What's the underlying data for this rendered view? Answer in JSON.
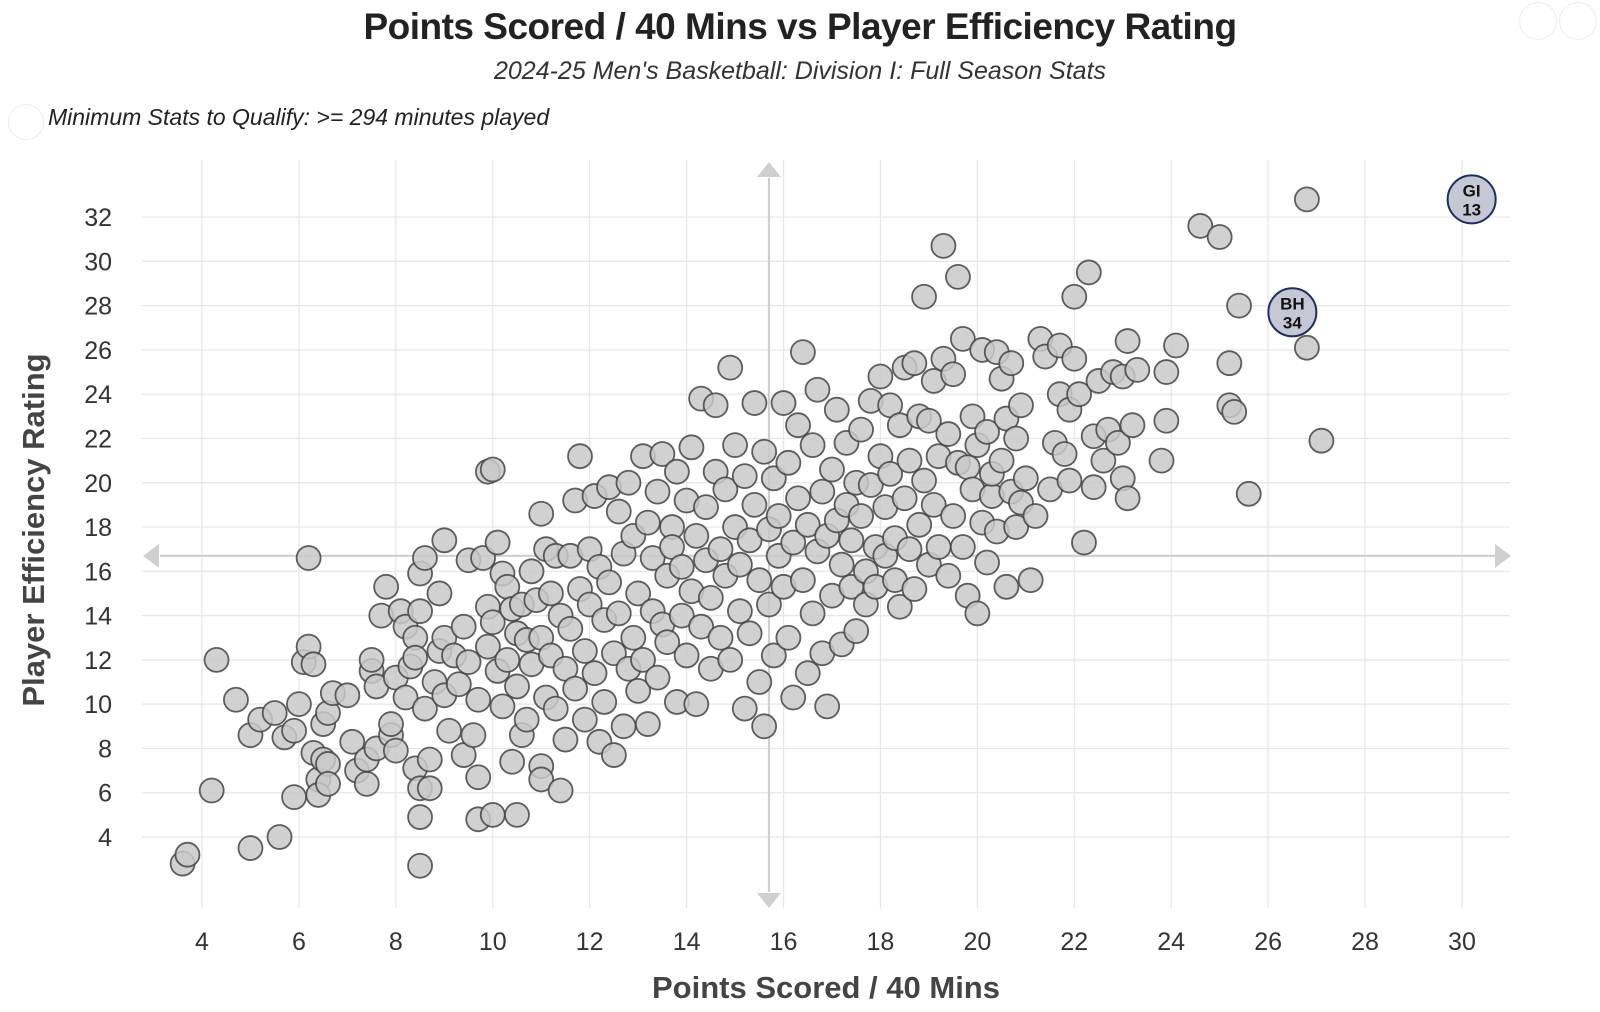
{
  "header": {
    "title": "Points Scored / 40 Mins vs Player Efficiency Rating",
    "subtitle": "2024-25 Men's Basketball: Division I: Full Season Stats",
    "qualify_note": "Minimum Stats to Qualify: >= 294 minutes played"
  },
  "colors": {
    "point_fill": "#c9c9c9",
    "point_stroke": "#444444",
    "highlight_fill": "#c5c7d4",
    "highlight_stroke": "#1f2d5c",
    "grid": "#e6e6e6",
    "mean_line": "#cfcfcf"
  },
  "chart_data": {
    "type": "scatter",
    "title": "Points Scored / 40 Mins vs Player Efficiency Rating",
    "subtitle": "2024-25 Men's Basketball: Division I: Full Season Stats",
    "xlabel": "Points Scored / 40 Mins",
    "ylabel": "Player Efficiency Rating",
    "xlim": [
      3,
      31.5
    ],
    "ylim": [
      1.8,
      34.7
    ],
    "x_ticks": [
      "4",
      "6",
      "8",
      "10",
      "12",
      "14",
      "16",
      "18",
      "20",
      "22",
      "24",
      "26",
      "28",
      "30"
    ],
    "y_ticks": [
      "4",
      "6",
      "8",
      "10",
      "12",
      "14",
      "16",
      "18",
      "20",
      "22",
      "24",
      "26",
      "28",
      "30",
      "32"
    ],
    "grid": true,
    "mean_lines": {
      "x": 15.7,
      "y": 16.7
    },
    "highlighted": [
      {
        "label_top": "GI",
        "label_bottom": "13",
        "x": 30.2,
        "y": 32.8
      },
      {
        "label_top": "BH",
        "label_bottom": "34",
        "x": 26.5,
        "y": 27.7
      }
    ],
    "points": [
      [
        3.6,
        2.8
      ],
      [
        3.7,
        3.2
      ],
      [
        4.2,
        6.1
      ],
      [
        4.3,
        12.0
      ],
      [
        4.7,
        10.2
      ],
      [
        5.0,
        3.5
      ],
      [
        5.0,
        8.6
      ],
      [
        5.2,
        9.3
      ],
      [
        5.5,
        9.6
      ],
      [
        5.6,
        4.0
      ],
      [
        5.7,
        8.5
      ],
      [
        5.9,
        5.8
      ],
      [
        5.9,
        8.8
      ],
      [
        6.0,
        10.0
      ],
      [
        6.1,
        11.9
      ],
      [
        6.2,
        16.6
      ],
      [
        6.2,
        12.6
      ],
      [
        6.3,
        11.8
      ],
      [
        6.3,
        7.8
      ],
      [
        6.4,
        6.6
      ],
      [
        6.4,
        5.9
      ],
      [
        6.5,
        7.5
      ],
      [
        6.5,
        9.1
      ],
      [
        6.6,
        9.6
      ],
      [
        6.6,
        7.3
      ],
      [
        6.7,
        10.5
      ],
      [
        6.6,
        6.4
      ],
      [
        7.0,
        10.4
      ],
      [
        7.1,
        8.3
      ],
      [
        7.2,
        7.0
      ],
      [
        7.4,
        6.4
      ],
      [
        7.4,
        7.5
      ],
      [
        7.5,
        11.5
      ],
      [
        7.5,
        12.0
      ],
      [
        7.6,
        8.0
      ],
      [
        7.6,
        10.8
      ],
      [
        7.7,
        14.0
      ],
      [
        7.8,
        15.3
      ],
      [
        7.9,
        8.6
      ],
      [
        7.9,
        9.1
      ],
      [
        8.0,
        11.2
      ],
      [
        8.0,
        7.9
      ],
      [
        8.1,
        14.2
      ],
      [
        8.2,
        13.5
      ],
      [
        8.2,
        10.3
      ],
      [
        8.3,
        11.7
      ],
      [
        8.4,
        13.0
      ],
      [
        8.4,
        12.1
      ],
      [
        8.4,
        7.1
      ],
      [
        8.5,
        6.2
      ],
      [
        8.5,
        4.9
      ],
      [
        8.5,
        2.7
      ],
      [
        8.5,
        14.2
      ],
      [
        8.5,
        15.9
      ],
      [
        8.6,
        16.6
      ],
      [
        8.6,
        9.8
      ],
      [
        8.7,
        7.5
      ],
      [
        8.7,
        6.2
      ],
      [
        8.8,
        11.0
      ],
      [
        8.9,
        12.4
      ],
      [
        8.9,
        15.0
      ],
      [
        9.0,
        17.4
      ],
      [
        9.0,
        10.4
      ],
      [
        9.0,
        13.0
      ],
      [
        9.1,
        8.8
      ],
      [
        9.2,
        12.2
      ],
      [
        9.3,
        10.9
      ],
      [
        9.4,
        7.7
      ],
      [
        9.4,
        13.5
      ],
      [
        9.5,
        16.5
      ],
      [
        9.5,
        11.9
      ],
      [
        9.6,
        8.6
      ],
      [
        9.7,
        4.8
      ],
      [
        9.7,
        10.2
      ],
      [
        9.7,
        6.7
      ],
      [
        9.8,
        16.6
      ],
      [
        9.9,
        14.4
      ],
      [
        9.9,
        12.6
      ],
      [
        9.9,
        20.5
      ],
      [
        10.0,
        20.6
      ],
      [
        10.0,
        13.7
      ],
      [
        10.0,
        5.0
      ],
      [
        10.1,
        17.3
      ],
      [
        10.1,
        11.5
      ],
      [
        10.2,
        15.9
      ],
      [
        10.2,
        9.9
      ],
      [
        10.3,
        15.3
      ],
      [
        10.3,
        12.0
      ],
      [
        10.4,
        7.4
      ],
      [
        10.4,
        14.3
      ],
      [
        10.5,
        13.2
      ],
      [
        10.5,
        10.8
      ],
      [
        10.5,
        5.0
      ],
      [
        10.6,
        8.6
      ],
      [
        10.6,
        14.5
      ],
      [
        10.7,
        12.9
      ],
      [
        10.7,
        9.3
      ],
      [
        10.8,
        16.0
      ],
      [
        10.8,
        11.8
      ],
      [
        10.9,
        14.7
      ],
      [
        11.0,
        18.6
      ],
      [
        11.0,
        13.0
      ],
      [
        11.0,
        7.2
      ],
      [
        11.0,
        6.6
      ],
      [
        11.1,
        17.0
      ],
      [
        11.1,
        10.3
      ],
      [
        11.2,
        15.0
      ],
      [
        11.2,
        12.2
      ],
      [
        11.3,
        9.8
      ],
      [
        11.3,
        16.7
      ],
      [
        11.4,
        6.1
      ],
      [
        11.4,
        14.0
      ],
      [
        11.5,
        11.6
      ],
      [
        11.5,
        8.4
      ],
      [
        11.6,
        16.7
      ],
      [
        11.6,
        13.4
      ],
      [
        11.7,
        19.2
      ],
      [
        11.7,
        10.7
      ],
      [
        11.8,
        21.2
      ],
      [
        11.8,
        15.2
      ],
      [
        11.9,
        12.4
      ],
      [
        11.9,
        9.3
      ],
      [
        12.0,
        17.0
      ],
      [
        12.0,
        14.5
      ],
      [
        12.1,
        19.4
      ],
      [
        12.1,
        11.4
      ],
      [
        12.2,
        8.3
      ],
      [
        12.2,
        16.2
      ],
      [
        12.3,
        13.8
      ],
      [
        12.3,
        10.1
      ],
      [
        12.4,
        15.5
      ],
      [
        12.4,
        19.8
      ],
      [
        12.5,
        12.3
      ],
      [
        12.5,
        7.7
      ],
      [
        12.6,
        18.7
      ],
      [
        12.6,
        14.1
      ],
      [
        12.7,
        16.8
      ],
      [
        12.7,
        9.0
      ],
      [
        12.8,
        11.6
      ],
      [
        12.8,
        20.0
      ],
      [
        12.9,
        13.0
      ],
      [
        12.9,
        17.6
      ],
      [
        13.0,
        15.0
      ],
      [
        13.0,
        10.6
      ],
      [
        13.1,
        21.2
      ],
      [
        13.1,
        12.0
      ],
      [
        13.2,
        18.2
      ],
      [
        13.2,
        9.1
      ],
      [
        13.3,
        14.2
      ],
      [
        13.3,
        16.6
      ],
      [
        13.4,
        19.6
      ],
      [
        13.4,
        11.2
      ],
      [
        13.5,
        13.6
      ],
      [
        13.5,
        21.3
      ],
      [
        13.6,
        15.8
      ],
      [
        13.6,
        12.8
      ],
      [
        13.7,
        18.0
      ],
      [
        13.7,
        17.1
      ],
      [
        13.8,
        10.1
      ],
      [
        13.8,
        20.5
      ],
      [
        13.9,
        14.0
      ],
      [
        13.9,
        16.2
      ],
      [
        14.0,
        19.2
      ],
      [
        14.0,
        12.2
      ],
      [
        14.1,
        21.6
      ],
      [
        14.1,
        15.1
      ],
      [
        14.2,
        17.6
      ],
      [
        14.2,
        10.0
      ],
      [
        14.3,
        23.8
      ],
      [
        14.3,
        13.5
      ],
      [
        14.4,
        16.5
      ],
      [
        14.4,
        18.9
      ],
      [
        14.5,
        14.8
      ],
      [
        14.5,
        11.6
      ],
      [
        14.6,
        20.5
      ],
      [
        14.6,
        23.5
      ],
      [
        14.7,
        17.0
      ],
      [
        14.7,
        13.0
      ],
      [
        14.8,
        19.7
      ],
      [
        14.8,
        15.8
      ],
      [
        14.9,
        25.2
      ],
      [
        14.9,
        12.0
      ],
      [
        15.0,
        21.7
      ],
      [
        15.0,
        18.0
      ],
      [
        15.1,
        16.3
      ],
      [
        15.1,
        14.2
      ],
      [
        15.2,
        20.3
      ],
      [
        15.2,
        9.8
      ],
      [
        15.3,
        17.4
      ],
      [
        15.3,
        13.2
      ],
      [
        15.4,
        19.0
      ],
      [
        15.4,
        23.6
      ],
      [
        15.5,
        15.6
      ],
      [
        15.5,
        11.0
      ],
      [
        15.6,
        21.4
      ],
      [
        15.6,
        9.0
      ],
      [
        15.7,
        17.9
      ],
      [
        15.7,
        14.5
      ],
      [
        15.8,
        20.2
      ],
      [
        15.8,
        12.2
      ],
      [
        15.9,
        16.7
      ],
      [
        15.9,
        18.5
      ],
      [
        16.0,
        23.6
      ],
      [
        16.0,
        15.3
      ],
      [
        16.1,
        20.9
      ],
      [
        16.1,
        13.0
      ],
      [
        16.2,
        17.3
      ],
      [
        16.2,
        10.3
      ],
      [
        16.3,
        19.3
      ],
      [
        16.3,
        22.6
      ],
      [
        16.4,
        25.9
      ],
      [
        16.4,
        15.6
      ],
      [
        16.5,
        18.1
      ],
      [
        16.5,
        11.4
      ],
      [
        16.6,
        21.7
      ],
      [
        16.6,
        14.1
      ],
      [
        16.7,
        24.2
      ],
      [
        16.7,
        16.9
      ],
      [
        16.8,
        19.6
      ],
      [
        16.8,
        12.3
      ],
      [
        16.9,
        9.9
      ],
      [
        16.9,
        17.6
      ],
      [
        17.0,
        20.6
      ],
      [
        17.0,
        14.9
      ],
      [
        17.1,
        23.3
      ],
      [
        17.1,
        18.3
      ],
      [
        17.2,
        16.3
      ],
      [
        17.2,
        12.7
      ],
      [
        17.3,
        21.8
      ],
      [
        17.3,
        19.0
      ],
      [
        17.4,
        15.3
      ],
      [
        17.4,
        17.4
      ],
      [
        17.5,
        20.0
      ],
      [
        17.5,
        13.3
      ],
      [
        17.6,
        22.4
      ],
      [
        17.6,
        18.5
      ],
      [
        17.7,
        16.0
      ],
      [
        17.7,
        14.5
      ],
      [
        17.8,
        23.7
      ],
      [
        17.8,
        19.9
      ],
      [
        17.9,
        17.1
      ],
      [
        17.9,
        15.3
      ],
      [
        18.0,
        24.8
      ],
      [
        18.0,
        21.2
      ],
      [
        18.1,
        18.9
      ],
      [
        18.1,
        16.7
      ],
      [
        18.2,
        23.5
      ],
      [
        18.2,
        20.4
      ],
      [
        18.3,
        17.5
      ],
      [
        18.3,
        15.6
      ],
      [
        18.4,
        22.6
      ],
      [
        18.4,
        14.4
      ],
      [
        18.5,
        25.2
      ],
      [
        18.5,
        19.3
      ],
      [
        18.6,
        17.0
      ],
      [
        18.6,
        21.0
      ],
      [
        18.7,
        25.4
      ],
      [
        18.7,
        15.2
      ],
      [
        18.8,
        23.0
      ],
      [
        18.8,
        18.1
      ],
      [
        18.9,
        28.4
      ],
      [
        18.9,
        20.1
      ],
      [
        19.0,
        16.3
      ],
      [
        19.0,
        22.8
      ],
      [
        19.1,
        24.6
      ],
      [
        19.1,
        19.0
      ],
      [
        19.2,
        21.2
      ],
      [
        19.2,
        17.1
      ],
      [
        19.3,
        25.6
      ],
      [
        19.3,
        30.7
      ],
      [
        19.4,
        22.2
      ],
      [
        19.4,
        15.8
      ],
      [
        19.5,
        24.9
      ],
      [
        19.5,
        18.5
      ],
      [
        19.6,
        29.3
      ],
      [
        19.6,
        20.9
      ],
      [
        19.7,
        26.5
      ],
      [
        19.7,
        17.1
      ],
      [
        19.8,
        20.7
      ],
      [
        19.8,
        14.9
      ],
      [
        19.9,
        23.0
      ],
      [
        19.9,
        19.7
      ],
      [
        20.0,
        14.1
      ],
      [
        20.0,
        21.7
      ],
      [
        20.1,
        26.0
      ],
      [
        20.1,
        18.2
      ],
      [
        20.2,
        22.3
      ],
      [
        20.2,
        16.4
      ],
      [
        20.3,
        19.4
      ],
      [
        20.3,
        20.4
      ],
      [
        20.4,
        25.9
      ],
      [
        20.4,
        17.8
      ],
      [
        20.5,
        24.7
      ],
      [
        20.5,
        21.0
      ],
      [
        20.6,
        15.3
      ],
      [
        20.6,
        22.9
      ],
      [
        20.7,
        25.4
      ],
      [
        20.7,
        19.6
      ],
      [
        20.8,
        18.0
      ],
      [
        20.8,
        22.0
      ],
      [
        20.9,
        23.5
      ],
      [
        20.9,
        19.1
      ],
      [
        21.0,
        20.2
      ],
      [
        21.1,
        15.6
      ],
      [
        21.2,
        18.5
      ],
      [
        21.3,
        26.5
      ],
      [
        21.4,
        25.7
      ],
      [
        21.5,
        19.7
      ],
      [
        21.6,
        21.8
      ],
      [
        21.7,
        24.0
      ],
      [
        21.7,
        26.2
      ],
      [
        21.8,
        21.3
      ],
      [
        21.9,
        23.3
      ],
      [
        21.9,
        20.1
      ],
      [
        22.0,
        25.6
      ],
      [
        22.0,
        28.4
      ],
      [
        22.1,
        24.0
      ],
      [
        22.2,
        17.3
      ],
      [
        22.3,
        29.5
      ],
      [
        22.4,
        22.1
      ],
      [
        22.4,
        19.8
      ],
      [
        22.5,
        24.6
      ],
      [
        22.6,
        21.0
      ],
      [
        22.7,
        22.4
      ],
      [
        22.8,
        25.0
      ],
      [
        22.9,
        21.8
      ],
      [
        23.0,
        20.2
      ],
      [
        23.0,
        24.8
      ],
      [
        23.1,
        19.3
      ],
      [
        23.1,
        26.4
      ],
      [
        23.2,
        22.6
      ],
      [
        23.3,
        25.1
      ],
      [
        23.8,
        21.0
      ],
      [
        23.9,
        25.0
      ],
      [
        23.9,
        22.8
      ],
      [
        24.1,
        26.2
      ],
      [
        24.6,
        31.6
      ],
      [
        25.0,
        31.1
      ],
      [
        25.2,
        25.4
      ],
      [
        25.2,
        23.5
      ],
      [
        25.3,
        23.2
      ],
      [
        25.4,
        28.0
      ],
      [
        25.6,
        19.5
      ],
      [
        26.4,
        27.6
      ],
      [
        26.8,
        26.1
      ],
      [
        26.8,
        32.8
      ],
      [
        27.1,
        21.9
      ]
    ]
  }
}
